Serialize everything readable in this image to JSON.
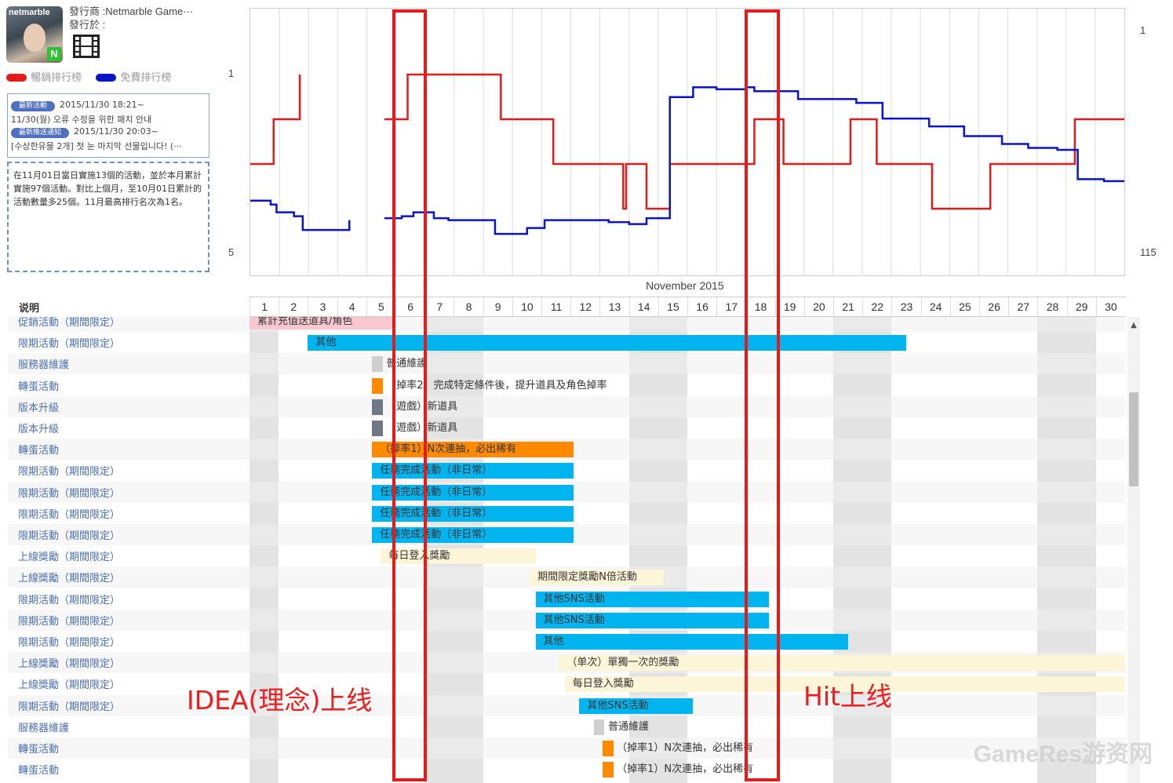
{
  "app": {
    "logo_text": "netmarble",
    "badge": "N",
    "publisher_line": "發行商 :Netmarble Game···",
    "released_line": "發行於 :",
    "legend": [
      {
        "label": "暢銷排行榜",
        "color": "#e31b1b"
      },
      {
        "label": "免費排行榜",
        "color": "#0a14c8"
      }
    ]
  },
  "events": {
    "latest_activity_badge": "最新活動",
    "latest_activity_time": "2015/11/30 18:21~",
    "latest_activity_text": "11/30(월) 오류 수정을 위한 패치 안내",
    "latest_push_badge": "最新推送通知",
    "latest_push_time": "2015/11/30 20:03~",
    "latest_push_text": "[수상한유물 2개] 첫 눈 마지막 선물입니다! (···"
  },
  "summary": "在11月01日當日實施13個的活動，並於本月累計實施97個活動。對比上個月，至10月01日累計的活動數量多25個。11月最高排行名次為1名。",
  "chart_data": {
    "type": "line",
    "xlabel": "November 2015",
    "x": [
      1,
      2,
      3,
      4,
      5,
      6,
      7,
      8,
      9,
      10,
      11,
      12,
      13,
      14,
      15,
      16,
      17,
      18,
      19,
      20,
      21,
      22,
      23,
      24,
      25,
      26,
      27,
      28,
      29,
      30
    ],
    "left_axis": {
      "ticks": [
        "1",
        "5"
      ],
      "range": [
        1,
        5
      ],
      "inverted": true
    },
    "right_axis": {
      "ticks": [
        "1",
        "115"
      ],
      "range": [
        1,
        115
      ],
      "inverted": true
    },
    "series": [
      {
        "name": "暢銷排行榜",
        "axis": "left",
        "color": "#e31b1b",
        "steps": [
          [
            0.0,
            3
          ],
          [
            0.8,
            2
          ],
          [
            1.7,
            1
          ],
          [
            4.4,
            null
          ],
          [
            4.6,
            2
          ],
          [
            5.4,
            1
          ],
          [
            8.6,
            2
          ],
          [
            10.4,
            3
          ],
          [
            12.8,
            4
          ],
          [
            12.9,
            3
          ],
          [
            13.6,
            4
          ],
          [
            14.4,
            3
          ],
          [
            17.3,
            2
          ],
          [
            18.3,
            3
          ],
          [
            20.6,
            2
          ],
          [
            21.5,
            3
          ],
          [
            23.4,
            4
          ],
          [
            25.4,
            3
          ],
          [
            28.3,
            2
          ],
          [
            30.0,
            2
          ]
        ]
      },
      {
        "name": "免費排行榜",
        "axis": "right",
        "color": "#0a14c8",
        "steps": [
          [
            0.0,
            88
          ],
          [
            0.7,
            90
          ],
          [
            0.9,
            94
          ],
          [
            1.5,
            96
          ],
          [
            1.8,
            103
          ],
          [
            3.4,
            98
          ],
          [
            4.4,
            null
          ],
          [
            4.6,
            97
          ],
          [
            5.2,
            96
          ],
          [
            5.6,
            94
          ],
          [
            6.3,
            97
          ],
          [
            6.8,
            98
          ],
          [
            8.4,
            105
          ],
          [
            9.5,
            102
          ],
          [
            10.1,
            98
          ],
          [
            12.3,
            99
          ],
          [
            13.0,
            100
          ],
          [
            13.6,
            97
          ],
          [
            14.4,
            35
          ],
          [
            15.2,
            30
          ],
          [
            16.0,
            31
          ],
          [
            16.6,
            31
          ],
          [
            17.0,
            30
          ],
          [
            17.3,
            32
          ],
          [
            18.8,
            36
          ],
          [
            20.8,
            38
          ],
          [
            21.7,
            46
          ],
          [
            23.3,
            50
          ],
          [
            24.5,
            55
          ],
          [
            25.8,
            59
          ],
          [
            26.7,
            61
          ],
          [
            27.7,
            62
          ],
          [
            28.4,
            77
          ],
          [
            29.3,
            78
          ],
          [
            30.0,
            78
          ]
        ]
      }
    ]
  },
  "table": {
    "header": "说明",
    "rows": [
      {
        "label": "促銷活動（期間限定）",
        "bars": [
          {
            "start": 1,
            "end": 5,
            "color": "#f8c8d0",
            "text": "累計充值送道具/角色"
          }
        ]
      },
      {
        "label": "限期活動（期間限定）",
        "bars": [
          {
            "start": 3,
            "end": 22.5,
            "color": "#00b4f0",
            "text": "其他"
          }
        ]
      },
      {
        "label": "服務器維護",
        "bars": [
          {
            "start": 5.2,
            "end": 5.4,
            "color": "#cfcfcf",
            "text": "普通維護"
          }
        ]
      },
      {
        "label": "轉蛋活動",
        "bars": [
          {
            "start": 5.2,
            "end": 5.45,
            "color": "#ff8a00",
            "text": "（掉率2）完成特定條件後，提升道具及角色掉率"
          }
        ]
      },
      {
        "label": "版本升級",
        "bars": [
          {
            "start": 5.2,
            "end": 5.45,
            "color": "#707888",
            "text": "（遊戲）新道具"
          }
        ]
      },
      {
        "label": "版本升級",
        "bars": [
          {
            "start": 5.2,
            "end": 5.45,
            "color": "#707888",
            "text": "（遊戲）新道具"
          }
        ]
      },
      {
        "label": "轉蛋活動",
        "bars": [
          {
            "start": 5.2,
            "end": 11.1,
            "color": "#ff8a00",
            "text": "（掉率1）N次連抽，必出稀有"
          }
        ]
      },
      {
        "label": "限期活動（期間限定）",
        "bars": [
          {
            "start": 5.2,
            "end": 11.1,
            "color": "#00b4f0",
            "text": "任務完成活動（非日常）"
          }
        ]
      },
      {
        "label": "限期活動（期間限定）",
        "bars": [
          {
            "start": 5.2,
            "end": 11.1,
            "color": "#00b4f0",
            "text": "任務完成活動（非日常）"
          }
        ]
      },
      {
        "label": "限期活動（期間限定）",
        "bars": [
          {
            "start": 5.2,
            "end": 11.1,
            "color": "#00b4f0",
            "text": "任務完成活動（非日常）"
          }
        ]
      },
      {
        "label": "限期活動（期間限定）",
        "bars": [
          {
            "start": 5.2,
            "end": 11.1,
            "color": "#00b4f0",
            "text": "任務完成活動（非日常）"
          }
        ]
      },
      {
        "label": "上線獎勵（期間限定）",
        "bars": [
          {
            "start": 5.5,
            "end": 9.8,
            "color": "#fdf5d8",
            "text": "每日登入獎勵"
          }
        ]
      },
      {
        "label": "上線獎勵（期間限定）",
        "bars": [
          {
            "start": 10.6,
            "end": 14.2,
            "color": "#fdf5d8",
            "text": "期間限定獎勵N倍活動"
          }
        ]
      },
      {
        "label": "限期活動（期間限定）",
        "bars": [
          {
            "start": 10.8,
            "end": 17.8,
            "color": "#00b4f0",
            "text": "其他SNS活動"
          }
        ]
      },
      {
        "label": "限期活動（期間限定）",
        "bars": [
          {
            "start": 10.8,
            "end": 17.8,
            "color": "#00b4f0",
            "text": "其他SNS活動"
          }
        ]
      },
      {
        "label": "限期活動（期間限定）",
        "bars": [
          {
            "start": 10.8,
            "end": 20.5,
            "color": "#00b4f0",
            "text": "其他"
          }
        ]
      },
      {
        "label": "上線獎勵（期間限定）",
        "bars": [
          {
            "start": 11.6,
            "end": 30,
            "color": "#fdf5d8",
            "text": "（单次）單獨一次的獎勵"
          }
        ]
      },
      {
        "label": "上線獎勵（期間限定）",
        "bars": [
          {
            "start": 11.8,
            "end": 30,
            "color": "#fdf5d8",
            "text": "每日登入獎勵"
          }
        ]
      },
      {
        "label": "限期活動（期間限定）",
        "bars": [
          {
            "start": 12.3,
            "end": 15.2,
            "color": "#00b4f0",
            "text": "其他SNS活動"
          }
        ]
      },
      {
        "label": "服務器維護",
        "bars": [
          {
            "start": 12.8,
            "end": 13.0,
            "color": "#cfcfcf",
            "text": "普通維護"
          }
        ]
      },
      {
        "label": "轉蛋活動",
        "bars": [
          {
            "start": 13.1,
            "end": 13.3,
            "color": "#ff8a00",
            "text": "（掉率1）N次連抽，必出稀有"
          }
        ]
      },
      {
        "label": "轉蛋活動",
        "bars": [
          {
            "start": 13.1,
            "end": 13.3,
            "color": "#ff8a00",
            "text": "（掉率1）N次連抽，必出稀有"
          }
        ]
      }
    ]
  },
  "annotations": {
    "idea_label": "IDEA(理念)上线",
    "hit_label": "Hit上线"
  },
  "watermark": "GameRes游资网"
}
